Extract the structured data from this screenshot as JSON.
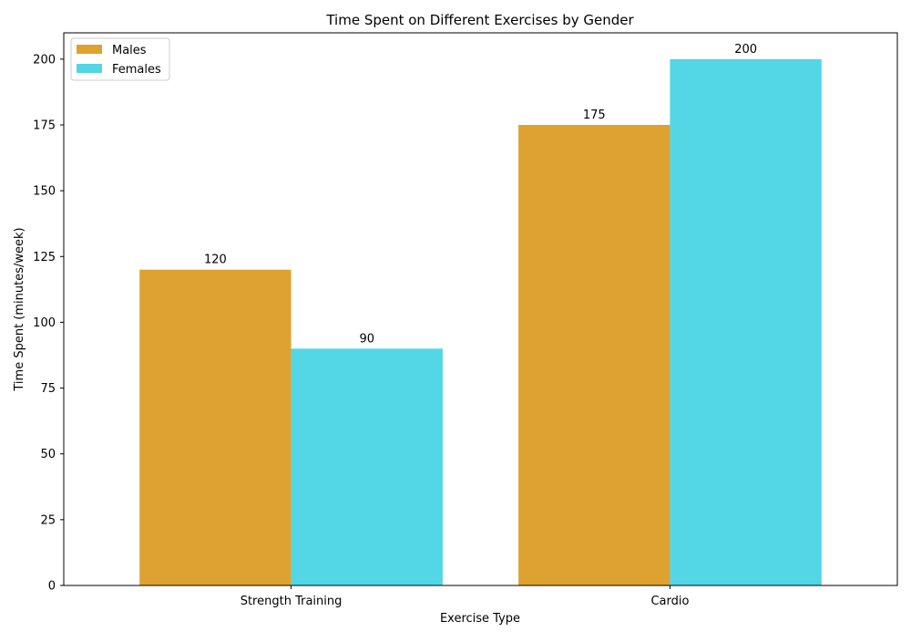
{
  "chart_data": {
    "type": "bar",
    "title": "Time Spent on Different Exercises by Gender",
    "xlabel": "Exercise Type",
    "ylabel": "Time Spent (minutes/week)",
    "categories": [
      "Strength Training",
      "Cardio"
    ],
    "series": [
      {
        "name": "Males",
        "values": [
          120,
          175
        ],
        "color": "#DDA232"
      },
      {
        "name": "Females",
        "values": [
          90,
          200
        ],
        "color": "#53D6E5"
      }
    ],
    "ylim": [
      0,
      210
    ],
    "yticks": [
      0,
      25,
      50,
      75,
      100,
      125,
      150,
      175,
      200
    ],
    "grid": false,
    "legend_position": "top-left",
    "data_labels": true
  }
}
